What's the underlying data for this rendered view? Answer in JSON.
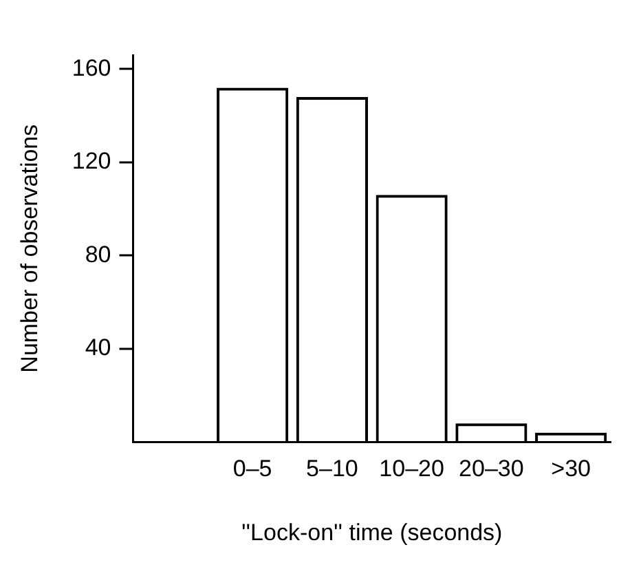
{
  "chart_data": {
    "type": "bar",
    "xlabel": "''Lock-on'' time (seconds)",
    "ylabel": "Number of observations",
    "categories": [
      null,
      "0–5",
      "5–10",
      "10–20",
      "20–30",
      ">30"
    ],
    "values": [
      null,
      152,
      148,
      106,
      8,
      4
    ],
    "color": "#000000",
    "ylim": [
      0,
      166
    ],
    "yticks": [
      40,
      80,
      120,
      160
    ],
    "grid": false,
    "legend": false
  }
}
